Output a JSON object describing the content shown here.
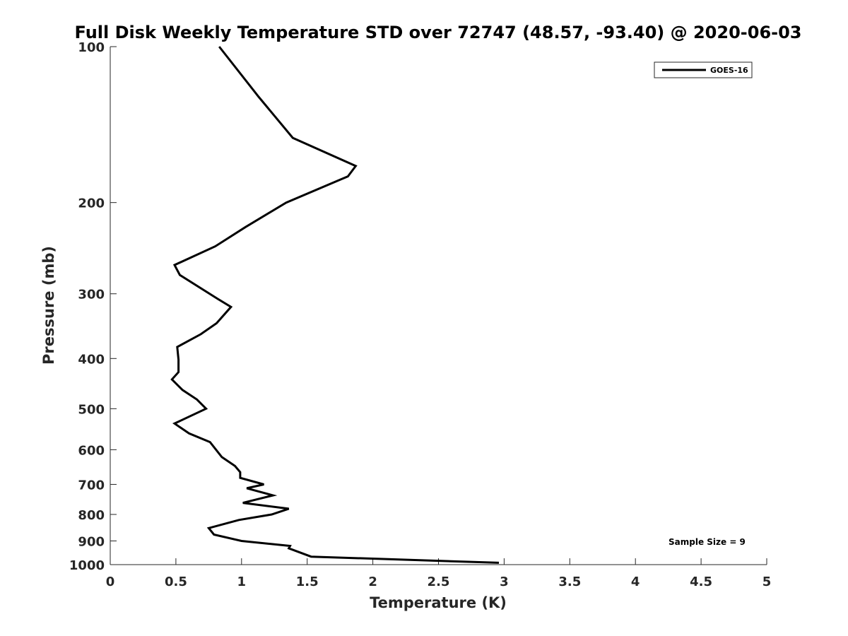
{
  "chart_data": {
    "type": "line",
    "title": "Full Disk Weekly Temperature STD over 72747 (48.57, -93.40) @ 2020-06-03",
    "xlabel": "Temperature (K)",
    "ylabel": "Pressure (mb)",
    "xlim": [
      0,
      5
    ],
    "ylim": [
      100,
      1000
    ],
    "y_scale": "log",
    "y_reversed": true,
    "xticks": [
      0,
      0.5,
      1,
      1.5,
      2,
      2.5,
      3,
      3.5,
      4,
      4.5,
      5
    ],
    "xtick_labels": [
      "0",
      "0.5",
      "1",
      "1.5",
      "2",
      "2.5",
      "3",
      "3.5",
      "4",
      "4.5",
      "5"
    ],
    "yticks": [
      100,
      200,
      300,
      400,
      500,
      600,
      700,
      800,
      900,
      1000
    ],
    "ytick_labels": [
      "100",
      "200",
      "300",
      "400",
      "500",
      "600",
      "700",
      "800",
      "900",
      "1000"
    ],
    "grid": false,
    "legend_position": "top-right",
    "annotation": "Sample Size = 9",
    "series": [
      {
        "name": "GOES-16",
        "color": "#000000",
        "points": [
          [
            0.83,
            100
          ],
          [
            1.13,
            125
          ],
          [
            1.39,
            150
          ],
          [
            1.87,
            170
          ],
          [
            1.81,
            178
          ],
          [
            1.34,
            200
          ],
          [
            1.03,
            223
          ],
          [
            0.8,
            243
          ],
          [
            0.49,
            264
          ],
          [
            0.53,
            276
          ],
          [
            0.82,
            307
          ],
          [
            0.92,
            318
          ],
          [
            0.81,
            342
          ],
          [
            0.69,
            359
          ],
          [
            0.51,
            380
          ],
          [
            0.52,
            402
          ],
          [
            0.52,
            425
          ],
          [
            0.47,
            439
          ],
          [
            0.55,
            460
          ],
          [
            0.66,
            480
          ],
          [
            0.73,
            500
          ],
          [
            0.49,
            534
          ],
          [
            0.6,
            558
          ],
          [
            0.76,
            580
          ],
          [
            0.85,
            620
          ],
          [
            0.95,
            645
          ],
          [
            0.99,
            663
          ],
          [
            0.99,
            680
          ],
          [
            1.17,
            700
          ],
          [
            1.04,
            712
          ],
          [
            1.24,
            735
          ],
          [
            1.01,
            760
          ],
          [
            1.36,
            780
          ],
          [
            1.23,
            800
          ],
          [
            0.98,
            820
          ],
          [
            0.75,
            850
          ],
          [
            0.79,
            875
          ],
          [
            1.0,
            900
          ],
          [
            1.37,
            920
          ],
          [
            1.36,
            930
          ],
          [
            1.53,
            965
          ],
          [
            2.96,
            992
          ]
        ]
      }
    ]
  }
}
